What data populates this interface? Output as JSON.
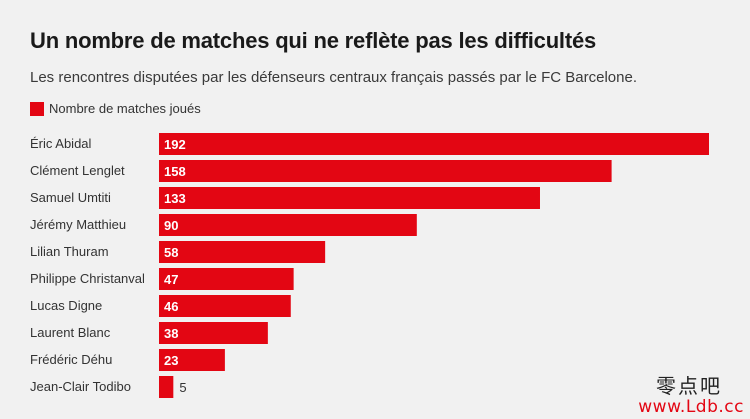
{
  "title": "Un nombre de matches qui ne reflète pas les difficultés",
  "subtitle": "Les rencontres disputées par les défenseurs centraux français passés par le FC Barcelone.",
  "watermark": {
    "chinese": "零点吧",
    "url": "www.Ldb.cc"
  },
  "chart_data": {
    "type": "bar",
    "orientation": "horizontal",
    "title": "Un nombre de matches qui ne reflète pas les difficultés",
    "subtitle": "Les rencontres disputées par les défenseurs centraux français passés par le FC Barcelone.",
    "xlabel": "",
    "ylabel": "",
    "xlim": [
      0,
      192
    ],
    "grid": false,
    "legend_position": "top-left",
    "bar_color": "#e30613",
    "categories": [
      "Éric Abidal",
      "Clément Lenglet",
      "Samuel Umtiti",
      "Jérémy Matthieu",
      "Lilian Thuram",
      "Philippe Christanval",
      "Lucas Digne",
      "Laurent Blanc",
      "Frédéric Déhu",
      "Jean-Clair Todibo"
    ],
    "series": [
      {
        "name": "Nombre de matches joués",
        "values": [
          192,
          158,
          133,
          90,
          58,
          47,
          46,
          38,
          23,
          5
        ]
      }
    ]
  }
}
